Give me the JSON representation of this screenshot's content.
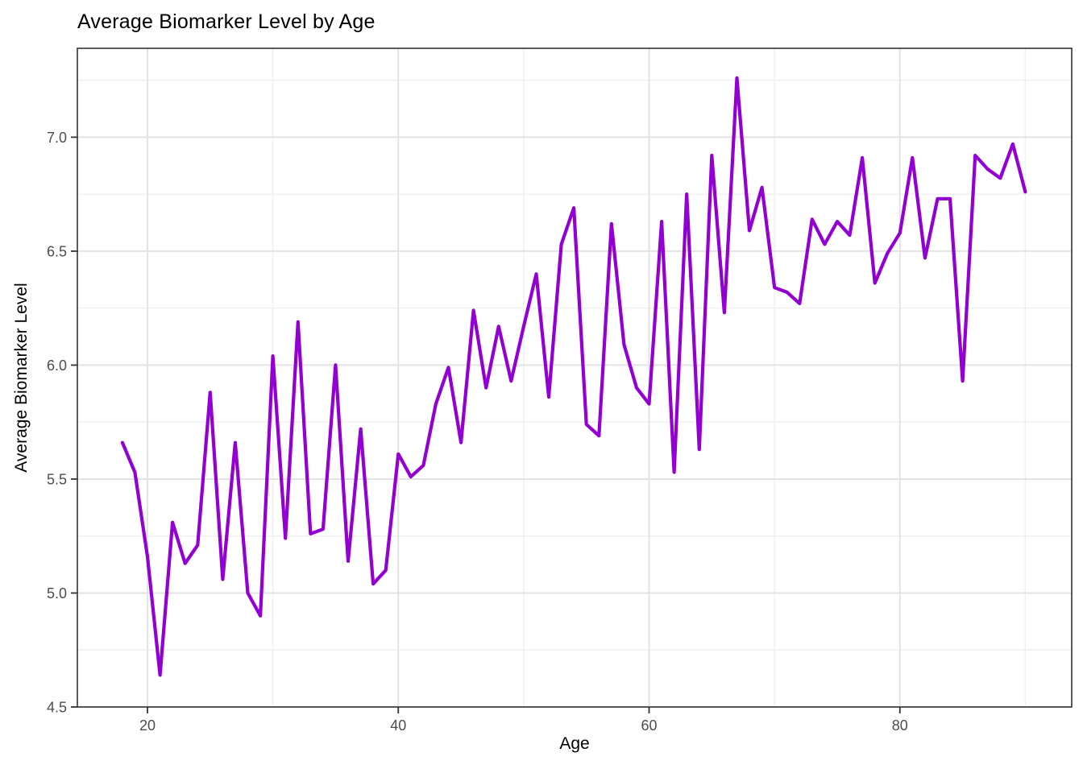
{
  "chart": {
    "title": "Average Biomarker Level by Age",
    "x_axis": {
      "label": "Age",
      "tick_labels": [
        "20",
        "40",
        "60",
        "80"
      ]
    },
    "y_axis": {
      "label": "Average Biomarker Level",
      "tick_labels": [
        "4.5",
        "5.0",
        "5.5",
        "6.0",
        "6.5",
        "7.0"
      ]
    }
  },
  "chart_data": {
    "type": "line",
    "title": "Average Biomarker Level by Age",
    "xlabel": "Age",
    "ylabel": "Average Biomarker Level",
    "legend_position": "none",
    "grid": "major and minor gridlines, light gray on white panel with dark border",
    "xlim": [
      14.41,
      93.7
    ],
    "ylim": [
      4.5,
      7.39
    ],
    "x_major_ticks": [
      20,
      40,
      60,
      80
    ],
    "y_major_ticks": [
      4.5,
      5.0,
      5.5,
      6.0,
      6.5,
      7.0
    ],
    "x_minor_gridlines": [
      30,
      50,
      70,
      90
    ],
    "y_minor_gridlines": [
      4.75,
      5.25,
      5.75,
      6.25,
      6.75,
      7.25
    ],
    "x": [
      18,
      19,
      20,
      21,
      22,
      23,
      24,
      25,
      26,
      27,
      28,
      29,
      30,
      31,
      32,
      33,
      34,
      35,
      36,
      37,
      38,
      39,
      40,
      41,
      42,
      43,
      44,
      45,
      46,
      47,
      48,
      49,
      50,
      51,
      52,
      53,
      54,
      55,
      56,
      57,
      58,
      59,
      60,
      61,
      62,
      63,
      64,
      65,
      66,
      67,
      68,
      69,
      70,
      71,
      72,
      73,
      74,
      75,
      76,
      77,
      78,
      79,
      80,
      81,
      82,
      83,
      84,
      85,
      86,
      87,
      88,
      89,
      90
    ],
    "series": [
      {
        "name": "Average Biomarker Level",
        "values": [
          5.66,
          5.53,
          5.16,
          4.64,
          5.31,
          5.13,
          5.21,
          5.88,
          5.06,
          5.66,
          5.0,
          4.9,
          6.04,
          5.24,
          6.19,
          5.26,
          5.28,
          6.0,
          5.14,
          5.72,
          5.04,
          5.1,
          5.61,
          5.51,
          5.56,
          5.83,
          5.99,
          5.66,
          6.24,
          5.9,
          6.17,
          5.93,
          6.17,
          6.4,
          5.86,
          6.53,
          6.69,
          5.74,
          5.69,
          6.62,
          6.09,
          5.9,
          5.83,
          6.63,
          5.53,
          6.75,
          5.63,
          6.92,
          6.23,
          7.26,
          6.59,
          6.78,
          6.34,
          6.32,
          6.27,
          6.64,
          6.53,
          6.63,
          6.57,
          6.91,
          6.36,
          6.49,
          6.58,
          6.91,
          6.47,
          6.73,
          6.73,
          5.93,
          6.92,
          6.86,
          6.82,
          6.97,
          6.76
        ]
      }
    ],
    "line_color": "#9400D3"
  },
  "colors": {
    "background": "#FFFFFF",
    "panel_background": "#FFFFFF",
    "grid_major": "#E3E3E3",
    "grid_minor": "#EFEFEF",
    "panel_border": "#333333",
    "tick_mark": "#333333",
    "tick_label": "#4D4D4D",
    "line": "#9400D3",
    "text": "#000000"
  }
}
